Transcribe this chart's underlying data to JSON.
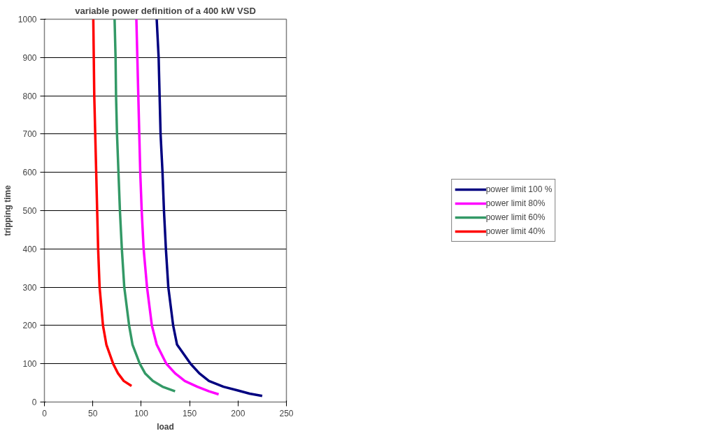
{
  "chart_data": {
    "type": "line",
    "title": "variable power definition of a 400 kW VSD",
    "xlabel": "load",
    "ylabel": "tripping time",
    "xlim": [
      0,
      250
    ],
    "ylim": [
      0,
      1000
    ],
    "xticks": [
      0,
      50,
      100,
      150,
      200,
      250
    ],
    "yticks": [
      0,
      100,
      200,
      300,
      400,
      500,
      600,
      700,
      800,
      900,
      1000
    ],
    "grid": "y",
    "legend": "right",
    "marker": "none",
    "line_style": "solid",
    "series": [
      {
        "name": "power limit 100 %",
        "color": "#000080",
        "x": [
          116,
          118,
          119,
          120,
          122,
          123.5,
          125.5,
          128,
          133,
          137,
          151,
          160,
          170,
          185,
          200,
          212,
          225
        ],
        "values": [
          1000,
          900,
          800,
          700,
          600,
          500,
          400,
          300,
          200,
          150,
          100,
          75,
          55,
          40,
          30,
          22,
          16
        ]
      },
      {
        "name": "power limit 80%",
        "color": "#ff00ff",
        "x": [
          95,
          96,
          97,
          98,
          99,
          100.5,
          102.5,
          106,
          111,
          116,
          126,
          135,
          145,
          158,
          170,
          180
        ],
        "values": [
          1000,
          900,
          800,
          700,
          600,
          500,
          400,
          300,
          200,
          150,
          100,
          75,
          55,
          40,
          28,
          20
        ]
      },
      {
        "name": "power limit 60%",
        "color": "#339966",
        "x": [
          72.5,
          73.5,
          74,
          75,
          76.5,
          78,
          80,
          82.5,
          87.5,
          91,
          98.5,
          104,
          112,
          122,
          135
        ],
        "values": [
          1000,
          900,
          800,
          700,
          600,
          500,
          400,
          300,
          200,
          150,
          100,
          75,
          55,
          40,
          28
        ]
      },
      {
        "name": "power limit 40%",
        "color": "#ff0000",
        "x": [
          50.5,
          51,
          51.5,
          52.5,
          53.5,
          54.5,
          55.5,
          57,
          60.5,
          64,
          71,
          76,
          82,
          90
        ],
        "values": [
          1000,
          900,
          800,
          700,
          600,
          500,
          400,
          300,
          200,
          150,
          100,
          75,
          55,
          42
        ]
      }
    ]
  }
}
